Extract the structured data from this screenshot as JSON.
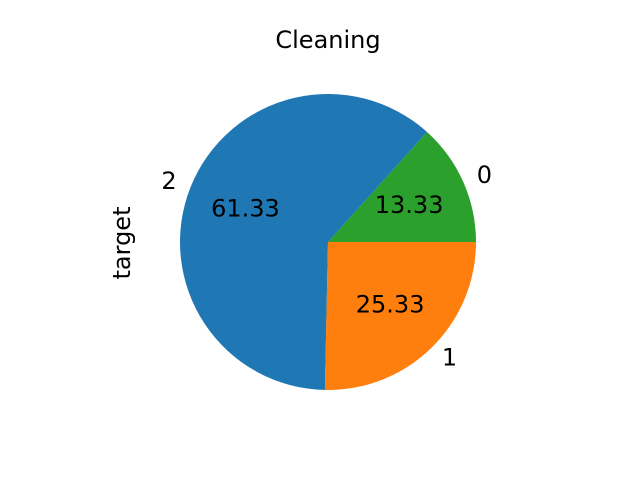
{
  "chart_data": {
    "type": "pie",
    "title": "Cleaning",
    "ylabel": "target",
    "categories": [
      "0",
      "2",
      "1"
    ],
    "values": [
      13.33,
      61.33,
      25.33
    ],
    "pct_labels": [
      "13.33",
      "61.33",
      "25.33"
    ],
    "colors": [
      "#2ca02c",
      "#1f77b4",
      "#ff7f0e"
    ],
    "start_angle_deg": 0,
    "direction": "counterclockwise"
  }
}
